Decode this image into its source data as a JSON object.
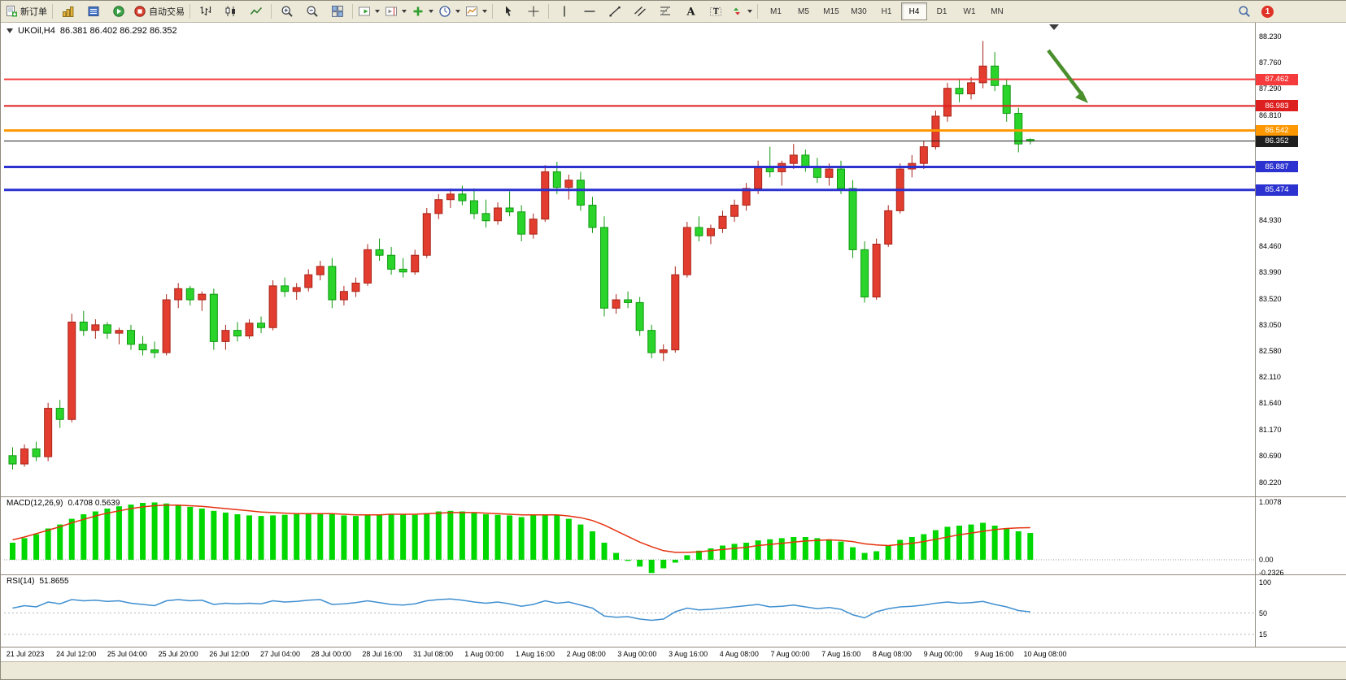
{
  "toolbar": {
    "new_order_label": "新订单",
    "auto_trading_label": "自动交易",
    "timeframes": [
      "M1",
      "M5",
      "M15",
      "M30",
      "H1",
      "H4",
      "D1",
      "W1",
      "MN"
    ],
    "active_timeframe": "H4",
    "notification_count": "1",
    "icons": [
      "new-order-icon",
      "charts-icon",
      "market-watch-icon",
      "navigator-icon",
      "auto-trading-icon",
      "bar-chart-icon",
      "candlestick-chart-icon",
      "line-chart-icon",
      "zoom-in-icon",
      "zoom-out-icon",
      "tile-windows-icon",
      "auto-scroll-icon",
      "chart-shift-icon",
      "indicators-icon",
      "periods-clock-icon",
      "templates-icon",
      "cursor-icon",
      "crosshair-icon",
      "vertical-line-icon",
      "horizontal-line-icon",
      "trendline-icon",
      "channel-icon",
      "fibonacci-icon",
      "text-icon",
      "text-label-icon",
      "arrows-icon",
      "search-icon"
    ]
  },
  "chart": {
    "symbol_period": "UKOil,H4",
    "ohlc_text": "86.381 86.402 86.292 86.352"
  },
  "chart_data": {
    "type": "candlestick",
    "symbol": "UKOil",
    "period": "H4",
    "ohlc_display": {
      "open": "86.381",
      "high": "86.402",
      "low": "86.292",
      "close": "86.352"
    },
    "colors": {
      "bull": "#e23d2e",
      "bull_border": "#a8251a",
      "bear": "#2bd42b",
      "bear_border": "#0f9a0f"
    },
    "candles": [
      [
        80.7,
        80.85,
        80.45,
        80.55
      ],
      [
        80.55,
        80.9,
        80.5,
        80.82
      ],
      [
        80.82,
        80.95,
        80.6,
        80.68
      ],
      [
        80.68,
        81.65,
        80.6,
        81.55
      ],
      [
        81.55,
        81.7,
        81.2,
        81.35
      ],
      [
        81.35,
        83.25,
        81.3,
        83.1
      ],
      [
        83.1,
        83.3,
        82.85,
        82.95
      ],
      [
        82.95,
        83.15,
        82.8,
        83.05
      ],
      [
        83.05,
        83.1,
        82.8,
        82.9
      ],
      [
        82.9,
        83.0,
        82.7,
        82.95
      ],
      [
        82.95,
        83.05,
        82.6,
        82.7
      ],
      [
        82.7,
        82.85,
        82.5,
        82.6
      ],
      [
        82.6,
        82.75,
        82.45,
        82.55
      ],
      [
        82.55,
        83.6,
        82.5,
        83.5
      ],
      [
        83.5,
        83.8,
        83.35,
        83.7
      ],
      [
        83.7,
        83.75,
        83.4,
        83.5
      ],
      [
        83.5,
        83.65,
        83.3,
        83.6
      ],
      [
        83.6,
        83.7,
        82.6,
        82.75
      ],
      [
        82.75,
        83.05,
        82.6,
        82.95
      ],
      [
        82.95,
        83.1,
        82.75,
        82.85
      ],
      [
        82.85,
        83.15,
        82.8,
        83.08
      ],
      [
        83.08,
        83.2,
        82.9,
        83.0
      ],
      [
        83.0,
        83.85,
        82.95,
        83.75
      ],
      [
        83.75,
        83.9,
        83.55,
        83.65
      ],
      [
        83.65,
        83.8,
        83.5,
        83.72
      ],
      [
        83.72,
        84.05,
        83.65,
        83.95
      ],
      [
        83.95,
        84.2,
        83.85,
        84.1
      ],
      [
        84.1,
        84.25,
        83.35,
        83.5
      ],
      [
        83.5,
        83.75,
        83.4,
        83.65
      ],
      [
        83.65,
        83.9,
        83.55,
        83.8
      ],
      [
        83.8,
        84.5,
        83.75,
        84.4
      ],
      [
        84.4,
        84.6,
        84.2,
        84.3
      ],
      [
        84.3,
        84.45,
        83.95,
        84.05
      ],
      [
        84.05,
        84.25,
        83.9,
        84.0
      ],
      [
        84.0,
        84.4,
        83.95,
        84.3
      ],
      [
        84.3,
        85.15,
        84.25,
        85.05
      ],
      [
        85.05,
        85.4,
        84.95,
        85.3
      ],
      [
        85.3,
        85.5,
        85.15,
        85.4
      ],
      [
        85.4,
        85.55,
        85.2,
        85.28
      ],
      [
        85.28,
        85.5,
        84.95,
        85.05
      ],
      [
        85.05,
        85.3,
        84.8,
        84.92
      ],
      [
        84.92,
        85.25,
        84.85,
        85.15
      ],
      [
        85.15,
        85.45,
        85.0,
        85.08
      ],
      [
        85.08,
        85.2,
        84.55,
        84.68
      ],
      [
        84.68,
        85.05,
        84.6,
        84.95
      ],
      [
        84.95,
        85.92,
        84.9,
        85.8
      ],
      [
        85.8,
        85.98,
        85.4,
        85.52
      ],
      [
        85.52,
        85.75,
        85.3,
        85.65
      ],
      [
        85.65,
        85.8,
        85.1,
        85.2
      ],
      [
        85.2,
        85.35,
        84.7,
        84.8
      ],
      [
        84.8,
        85.0,
        83.2,
        83.35
      ],
      [
        83.35,
        83.6,
        83.25,
        83.5
      ],
      [
        83.5,
        83.65,
        83.35,
        83.45
      ],
      [
        83.45,
        83.55,
        82.85,
        82.95
      ],
      [
        82.95,
        83.05,
        82.45,
        82.55
      ],
      [
        82.55,
        82.7,
        82.4,
        82.6
      ],
      [
        82.6,
        84.1,
        82.55,
        83.95
      ],
      [
        83.95,
        84.9,
        83.9,
        84.8
      ],
      [
        84.8,
        85.0,
        84.55,
        84.65
      ],
      [
        84.65,
        84.85,
        84.5,
        84.78
      ],
      [
        84.78,
        85.1,
        84.7,
        85.0
      ],
      [
        85.0,
        85.3,
        84.9,
        85.2
      ],
      [
        85.2,
        85.6,
        85.1,
        85.5
      ],
      [
        85.5,
        86.0,
        85.4,
        85.9
      ],
      [
        85.9,
        86.25,
        85.7,
        85.8
      ],
      [
        85.8,
        86.0,
        85.55,
        85.95
      ],
      [
        85.95,
        86.3,
        85.85,
        86.1
      ],
      [
        86.1,
        86.2,
        85.8,
        85.9
      ],
      [
        85.9,
        86.05,
        85.6,
        85.7
      ],
      [
        85.7,
        85.95,
        85.55,
        85.85
      ],
      [
        85.85,
        86.0,
        85.4,
        85.5
      ],
      [
        85.5,
        85.65,
        84.25,
        84.4
      ],
      [
        84.4,
        84.55,
        83.45,
        83.55
      ],
      [
        83.55,
        84.6,
        83.5,
        84.5
      ],
      [
        84.5,
        85.2,
        84.45,
        85.1
      ],
      [
        85.1,
        85.95,
        85.05,
        85.85
      ],
      [
        85.85,
        86.1,
        85.7,
        85.95
      ],
      [
        85.95,
        86.35,
        85.85,
        86.25
      ],
      [
        86.25,
        86.9,
        86.2,
        86.8
      ],
      [
        86.8,
        87.4,
        86.7,
        87.3
      ],
      [
        87.3,
        87.45,
        87.05,
        87.2
      ],
      [
        87.2,
        87.5,
        87.1,
        87.4
      ],
      [
        87.4,
        88.15,
        87.3,
        87.7
      ],
      [
        87.7,
        87.95,
        87.25,
        87.35
      ],
      [
        87.35,
        87.45,
        86.7,
        86.85
      ],
      [
        86.85,
        86.95,
        86.15,
        86.3
      ],
      [
        86.381,
        86.402,
        86.292,
        86.352
      ]
    ],
    "hlines": [
      {
        "price": 87.462,
        "label": "87.462",
        "color": "#f53b3b",
        "width": 2
      },
      {
        "price": 86.983,
        "label": "86.983",
        "color": "#de1f1f",
        "width": 2
      },
      {
        "price": 86.542,
        "label": "86.542",
        "color": "#ff9800",
        "width": 3
      },
      {
        "price": 85.887,
        "label": "85.887",
        "color": "#2b32cf",
        "width": 3
      },
      {
        "price": 85.474,
        "label": "85.474",
        "color": "#2b32cf",
        "width": 3
      }
    ],
    "current_price": {
      "price": 86.352,
      "label": "86.352",
      "color": "#1f1f1f"
    },
    "price_axis_ticks": [
      "88.230",
      "87.760",
      "87.290",
      "86.810",
      "84.930",
      "84.460",
      "83.990",
      "83.520",
      "83.050",
      "82.580",
      "82.110",
      "81.640",
      "81.170",
      "80.690",
      "80.220"
    ],
    "time_axis_ticks": [
      "21 Jul 2023",
      "24 Jul 12:00",
      "25 Jul 04:00",
      "25 Jul 20:00",
      "26 Jul 12:00",
      "27 Jul 04:00",
      "28 Jul 00:00",
      "28 Jul 16:00",
      "31 Jul 08:00",
      "1 Aug 00:00",
      "1 Aug 16:00",
      "2 Aug 08:00",
      "3 Aug 00:00",
      "3 Aug 16:00",
      "4 Aug 08:00",
      "7 Aug 00:00",
      "7 Aug 16:00",
      "8 Aug 08:00",
      "9 Aug 00:00",
      "9 Aug 16:00",
      "10 Aug 08:00"
    ],
    "macd": {
      "name": "MACD(12,26,9)",
      "values_text": "0.4708 0.5639",
      "axis_ticks": [
        "1.0078",
        "0.00",
        "-0.2326"
      ],
      "histogram_color": "#00d800",
      "signal_color": "#e53210",
      "histogram": [
        0.3,
        0.38,
        0.45,
        0.55,
        0.62,
        0.72,
        0.8,
        0.85,
        0.9,
        0.94,
        0.97,
        1.0,
        1.0078,
        0.99,
        0.96,
        0.93,
        0.9,
        0.86,
        0.83,
        0.8,
        0.78,
        0.77,
        0.78,
        0.79,
        0.8,
        0.81,
        0.82,
        0.8,
        0.78,
        0.77,
        0.78,
        0.8,
        0.81,
        0.8,
        0.79,
        0.82,
        0.85,
        0.86,
        0.85,
        0.82,
        0.8,
        0.79,
        0.78,
        0.75,
        0.78,
        0.8,
        0.78,
        0.72,
        0.62,
        0.5,
        0.3,
        0.12,
        -0.02,
        -0.12,
        -0.2326,
        -0.15,
        -0.05,
        0.08,
        0.16,
        0.2,
        0.25,
        0.28,
        0.3,
        0.34,
        0.36,
        0.38,
        0.4,
        0.4,
        0.38,
        0.36,
        0.32,
        0.22,
        0.12,
        0.15,
        0.25,
        0.35,
        0.4,
        0.45,
        0.52,
        0.58,
        0.6,
        0.62,
        0.65,
        0.6,
        0.55,
        0.5,
        0.4708
      ],
      "signal": [
        0.35,
        0.4,
        0.46,
        0.52,
        0.58,
        0.65,
        0.71,
        0.77,
        0.82,
        0.86,
        0.9,
        0.93,
        0.95,
        0.96,
        0.96,
        0.95,
        0.94,
        0.92,
        0.9,
        0.88,
        0.86,
        0.84,
        0.83,
        0.82,
        0.81,
        0.81,
        0.81,
        0.81,
        0.8,
        0.79,
        0.79,
        0.79,
        0.8,
        0.8,
        0.8,
        0.81,
        0.82,
        0.83,
        0.83,
        0.83,
        0.82,
        0.81,
        0.8,
        0.79,
        0.79,
        0.79,
        0.79,
        0.77,
        0.74,
        0.69,
        0.61,
        0.51,
        0.41,
        0.31,
        0.23,
        0.16,
        0.13,
        0.13,
        0.14,
        0.16,
        0.18,
        0.2,
        0.22,
        0.25,
        0.27,
        0.29,
        0.31,
        0.33,
        0.34,
        0.35,
        0.34,
        0.32,
        0.28,
        0.26,
        0.25,
        0.27,
        0.29,
        0.32,
        0.36,
        0.4,
        0.44,
        0.47,
        0.5,
        0.53,
        0.55,
        0.56,
        0.5639
      ]
    },
    "rsi": {
      "name": "RSI(14)",
      "value_text": "51.8655",
      "axis_ticks": [
        "100",
        "50",
        "15"
      ],
      "levels": [
        50,
        15
      ],
      "line_color": "#3f8fd0",
      "values": [
        58,
        62,
        60,
        68,
        65,
        72,
        70,
        71,
        69,
        70,
        66,
        64,
        62,
        70,
        72,
        70,
        71,
        64,
        66,
        65,
        66,
        65,
        70,
        68,
        69,
        71,
        72,
        64,
        65,
        67,
        70,
        67,
        64,
        63,
        65,
        70,
        72,
        73,
        71,
        68,
        66,
        68,
        65,
        61,
        64,
        70,
        66,
        68,
        63,
        58,
        45,
        43,
        44,
        40,
        38,
        40,
        52,
        58,
        55,
        56,
        58,
        60,
        62,
        64,
        60,
        61,
        63,
        60,
        57,
        59,
        56,
        47,
        42,
        52,
        57,
        60,
        61,
        63,
        66,
        68,
        66,
        67,
        69,
        64,
        60,
        54,
        51.8655
      ]
    },
    "annotation": {
      "type": "arrow",
      "direction": "down-right",
      "arrow_color": "#4a8f2c"
    }
  }
}
